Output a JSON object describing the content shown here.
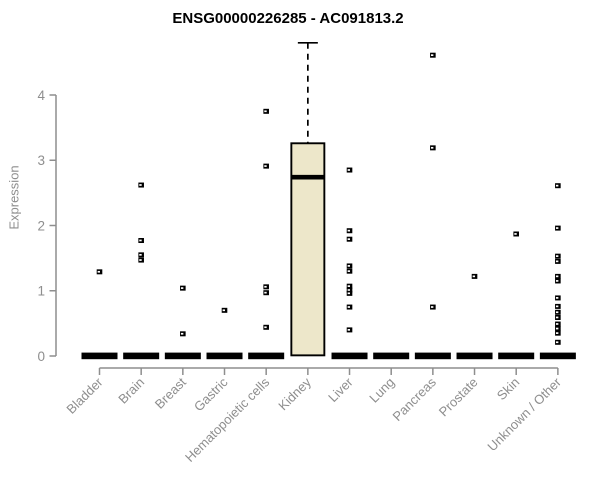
{
  "chart_data": {
    "type": "boxplot",
    "title": "ENSG00000226285 - AC091813.2",
    "ylabel": "Expression",
    "xlabel": "",
    "yticks": [
      0,
      1,
      2,
      3,
      4
    ],
    "ylim": [
      0,
      4.9
    ],
    "grid": false,
    "legend": false,
    "categories": [
      "Bladder",
      "Brain",
      "Breast",
      "Gastric",
      "Hematopoietic cells",
      "Kidney",
      "Liver",
      "Lung",
      "Pancreas",
      "Prostate",
      "Skin",
      "Unknown / Other"
    ],
    "series": [
      {
        "category": "Bladder",
        "q1": 0,
        "median": 0,
        "q3": 0,
        "whisker_low": 0,
        "whisker_high": 0,
        "outliers": [
          1.29
        ]
      },
      {
        "category": "Brain",
        "q1": 0,
        "median": 0,
        "q3": 0,
        "whisker_low": 0,
        "whisker_high": 0,
        "outliers": [
          2.62,
          1.77,
          1.55,
          1.47
        ]
      },
      {
        "category": "Breast",
        "q1": 0,
        "median": 0,
        "q3": 0,
        "whisker_low": 0,
        "whisker_high": 0,
        "outliers": [
          1.04,
          0.34
        ]
      },
      {
        "category": "Gastric",
        "q1": 0,
        "median": 0,
        "q3": 0,
        "whisker_low": 0,
        "whisker_high": 0,
        "outliers": [
          0.7
        ]
      },
      {
        "category": "Hematopoietic cells",
        "q1": 0,
        "median": 0,
        "q3": 0,
        "whisker_low": 0,
        "whisker_high": 0,
        "outliers": [
          3.75,
          2.91,
          1.06,
          0.97,
          0.44
        ]
      },
      {
        "category": "Kidney",
        "q1": 0.01,
        "median": 2.74,
        "q3": 3.26,
        "whisker_low": 0.01,
        "whisker_high": 4.8,
        "outliers": []
      },
      {
        "category": "Liver",
        "q1": 0,
        "median": 0,
        "q3": 0,
        "whisker_low": 0,
        "whisker_high": 0,
        "outliers": [
          2.85,
          1.92,
          1.79,
          1.38,
          1.3,
          1.07,
          1.01,
          0.96,
          0.75,
          0.4
        ]
      },
      {
        "category": "Lung",
        "q1": 0,
        "median": 0,
        "q3": 0,
        "whisker_low": 0,
        "whisker_high": 0,
        "outliers": []
      },
      {
        "category": "Pancreas",
        "q1": 0,
        "median": 0,
        "q3": 0,
        "whisker_low": 0,
        "whisker_high": 0,
        "outliers": [
          4.61,
          3.19,
          0.75
        ]
      },
      {
        "category": "Prostate",
        "q1": 0,
        "median": 0,
        "q3": 0,
        "whisker_low": 0,
        "whisker_high": 0,
        "outliers": [
          1.22
        ]
      },
      {
        "category": "Skin",
        "q1": 0,
        "median": 0,
        "q3": 0,
        "whisker_low": 0,
        "whisker_high": 0,
        "outliers": [
          1.87
        ]
      },
      {
        "category": "Unknown / Other",
        "q1": 0,
        "median": 0,
        "q3": 0,
        "whisker_low": 0,
        "whisker_high": 0,
        "outliers": [
          2.61,
          1.96,
          1.53,
          1.45,
          1.22,
          1.15,
          0.89,
          0.76,
          0.67,
          0.59,
          0.49,
          0.42,
          0.35,
          0.21
        ]
      }
    ],
    "colors": {
      "box_fill": "#EDE7CA",
      "box_border": "#000000",
      "median": "#000000",
      "whisker": "#000000",
      "outlier": "#000000",
      "axis": "#8E8E8E",
      "tick_label": "#8E8E8E",
      "title": "#000000",
      "background": "#FFFFFF"
    }
  }
}
